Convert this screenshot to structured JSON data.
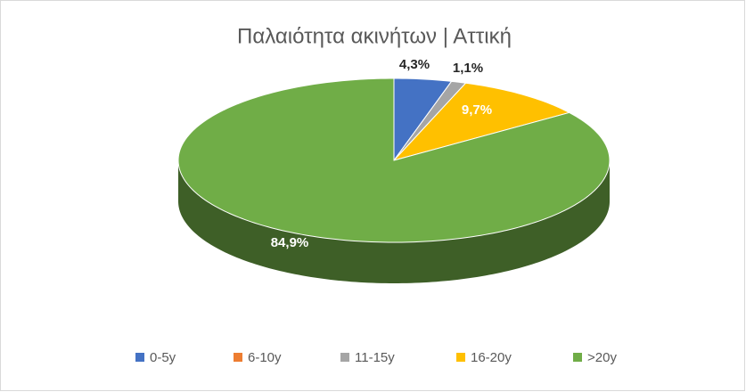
{
  "chart_data": {
    "type": "pie3d",
    "title": "Παλαιότητα ακινήτων | Αττική",
    "categories": [
      "0-5y",
      "6-10y",
      "11-15y",
      "16-20y",
      ">20y"
    ],
    "values": [
      4.3,
      0,
      1.1,
      9.7,
      84.9
    ],
    "value_labels": [
      "4,3%",
      null,
      "1,1%",
      "9,7%",
      "84,9%"
    ],
    "colors": [
      "#4472c4",
      "#ed7d31",
      "#a5a5a5",
      "#ffc000",
      "#70ad47"
    ],
    "legend": "bottom"
  }
}
